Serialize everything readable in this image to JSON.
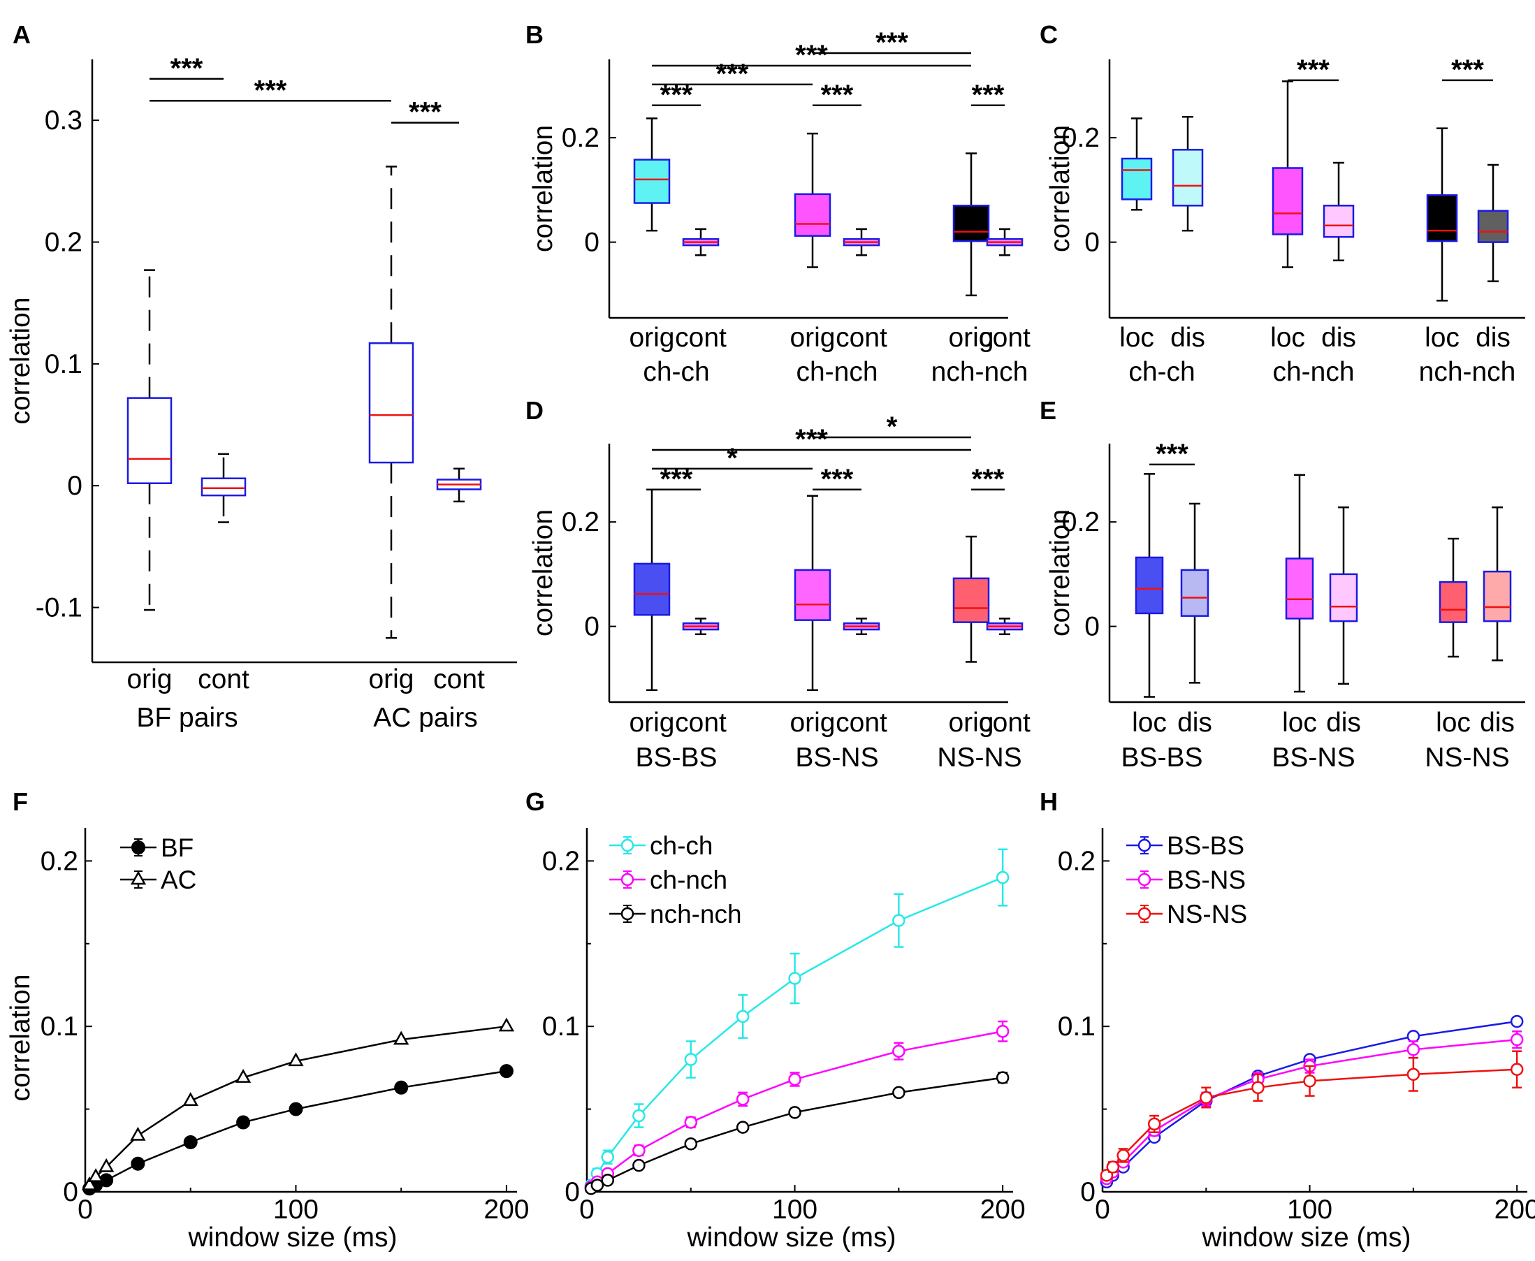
{
  "panel_labels": [
    "A",
    "B",
    "C",
    "D",
    "E",
    "F",
    "G",
    "H"
  ],
  "chart_data": [
    {
      "id": "A",
      "type": "box",
      "ylabel": "correlation",
      "ylim": [
        -0.145,
        0.35
      ],
      "yticks": [
        -0.1,
        0,
        0.1,
        0.2,
        0.3
      ],
      "ytick_labels": [
        "-0.1",
        "0",
        "0.1",
        "0.2",
        "0.3"
      ],
      "x_labels": [
        "orig",
        "cont",
        "orig",
        "cont"
      ],
      "group_labels": [
        "BF pairs",
        "AC pairs"
      ],
      "boxes": [
        {
          "label": "orig",
          "group": "BF pairs",
          "q1": 0.002,
          "median": 0.022,
          "q3": 0.072,
          "whisker_low": -0.102,
          "whisker_high": 0.177,
          "fill": "#ffffff"
        },
        {
          "label": "cont",
          "group": "BF pairs",
          "q1": -0.008,
          "median": -0.002,
          "q3": 0.006,
          "whisker_low": -0.03,
          "whisker_high": 0.026,
          "fill": "#ffffff"
        },
        {
          "label": "orig",
          "group": "AC pairs",
          "q1": 0.019,
          "median": 0.058,
          "q3": 0.117,
          "whisker_low": -0.125,
          "whisker_high": 0.262,
          "fill": "#ffffff"
        },
        {
          "label": "cont",
          "group": "AC pairs",
          "q1": -0.003,
          "median": 0.001,
          "q3": 0.005,
          "whisker_low": -0.013,
          "whisker_high": 0.014,
          "fill": "#ffffff"
        }
      ],
      "significance": [
        {
          "from": 0,
          "to": 1,
          "level": 0.334,
          "text": "***"
        },
        {
          "from": 0,
          "to": 2,
          "level": 0.316,
          "text": "***"
        },
        {
          "from": 2,
          "to": 3,
          "level": 0.298,
          "text": "***"
        }
      ]
    },
    {
      "id": "B",
      "type": "box",
      "ylabel": "correlation",
      "ylim": [
        -0.145,
        0.35
      ],
      "yticks": [
        0,
        0.2
      ],
      "ytick_labels": [
        "0",
        "0.2"
      ],
      "x_labels": [
        "orig",
        "cont",
        "orig",
        "cont",
        "orig",
        "cont"
      ],
      "group_labels": [
        "ch-ch",
        "ch-nch",
        "nch-nch"
      ],
      "boxes": [
        {
          "label": "orig",
          "group": "ch-ch",
          "q1": 0.075,
          "median": 0.12,
          "q3": 0.158,
          "whisker_low": 0.022,
          "whisker_high": 0.237,
          "fill": "#5ef2f2"
        },
        {
          "label": "cont",
          "group": "ch-ch",
          "q1": -0.006,
          "median": 0.0,
          "q3": 0.006,
          "whisker_low": -0.025,
          "whisker_high": 0.025,
          "fill": "#ff88ff"
        },
        {
          "label": "orig",
          "group": "ch-nch",
          "q1": 0.012,
          "median": 0.035,
          "q3": 0.092,
          "whisker_low": -0.048,
          "whisker_high": 0.208,
          "fill": "#ff55ff"
        },
        {
          "label": "cont",
          "group": "ch-nch",
          "q1": -0.006,
          "median": 0.0,
          "q3": 0.006,
          "whisker_low": -0.025,
          "whisker_high": 0.025,
          "fill": "#ff88ff"
        },
        {
          "label": "orig",
          "group": "nch-nch",
          "q1": 0.002,
          "median": 0.02,
          "q3": 0.07,
          "whisker_low": -0.102,
          "whisker_high": 0.17,
          "fill": "#000000"
        },
        {
          "label": "cont",
          "group": "nch-nch",
          "q1": -0.006,
          "median": 0.0,
          "q3": 0.006,
          "whisker_low": -0.025,
          "whisker_high": 0.025,
          "fill": "#ff88ff"
        }
      ],
      "significance": [
        {
          "from": 2,
          "to": 4,
          "level": 0.362,
          "text": "***"
        },
        {
          "from": 0,
          "to": 4,
          "level": 0.338,
          "text": "***"
        },
        {
          "from": 0,
          "to": 2,
          "level": 0.302,
          "text": "***"
        },
        {
          "from": 0,
          "to": 1,
          "level": 0.262,
          "text": "***"
        },
        {
          "from": 2,
          "to": 3,
          "level": 0.262,
          "text": "***"
        },
        {
          "from": 4,
          "to": 5,
          "level": 0.262,
          "text": "***"
        }
      ]
    },
    {
      "id": "C",
      "type": "box",
      "ylabel": "correlation",
      "ylim": [
        -0.145,
        0.35
      ],
      "yticks": [
        0,
        0.2
      ],
      "ytick_labels": [
        "0",
        "0.2"
      ],
      "x_labels": [
        "loc",
        "dis",
        "loc",
        "dis",
        "loc",
        "dis"
      ],
      "group_labels": [
        "ch-ch",
        "ch-nch",
        "nch-nch"
      ],
      "boxes": [
        {
          "label": "loc",
          "group": "ch-ch",
          "q1": 0.082,
          "median": 0.138,
          "q3": 0.16,
          "whisker_low": 0.062,
          "whisker_high": 0.237,
          "fill": "#5ef2f2"
        },
        {
          "label": "dis",
          "group": "ch-ch",
          "q1": 0.07,
          "median": 0.108,
          "q3": 0.177,
          "whisker_low": 0.022,
          "whisker_high": 0.24,
          "fill": "#bff9f9"
        },
        {
          "label": "loc",
          "group": "ch-nch",
          "q1": 0.015,
          "median": 0.055,
          "q3": 0.142,
          "whisker_low": -0.048,
          "whisker_high": 0.308,
          "fill": "#ff55ff"
        },
        {
          "label": "dis",
          "group": "ch-nch",
          "q1": 0.01,
          "median": 0.032,
          "q3": 0.07,
          "whisker_low": -0.035,
          "whisker_high": 0.152,
          "fill": "#ffc8ff"
        },
        {
          "label": "loc",
          "group": "nch-nch",
          "q1": 0.002,
          "median": 0.022,
          "q3": 0.09,
          "whisker_low": -0.112,
          "whisker_high": 0.218,
          "fill": "#000000"
        },
        {
          "label": "dis",
          "group": "nch-nch",
          "q1": 0.0,
          "median": 0.02,
          "q3": 0.06,
          "whisker_low": -0.075,
          "whisker_high": 0.148,
          "fill": "#606060"
        }
      ],
      "significance": [
        {
          "from": 2,
          "to": 3,
          "level": 0.31,
          "text": "***"
        },
        {
          "from": 4,
          "to": 5,
          "level": 0.31,
          "text": "***"
        }
      ]
    },
    {
      "id": "D",
      "type": "box",
      "ylabel": "correlation",
      "ylim": [
        -0.145,
        0.35
      ],
      "yticks": [
        0,
        0.2
      ],
      "ytick_labels": [
        "0",
        "0.2"
      ],
      "x_labels": [
        "orig",
        "cont",
        "orig",
        "cont",
        "orig",
        "cont"
      ],
      "group_labels": [
        "BS-BS",
        "BS-NS",
        "NS-NS"
      ],
      "boxes": [
        {
          "label": "orig",
          "group": "BS-BS",
          "q1": 0.022,
          "median": 0.062,
          "q3": 0.12,
          "whisker_low": -0.122,
          "whisker_high": 0.262,
          "fill": "#4a4ff2"
        },
        {
          "label": "cont",
          "group": "BS-BS",
          "q1": -0.006,
          "median": 0.0,
          "q3": 0.006,
          "whisker_low": -0.015,
          "whisker_high": 0.015,
          "fill": "#ff88ff"
        },
        {
          "label": "orig",
          "group": "BS-NS",
          "q1": 0.012,
          "median": 0.042,
          "q3": 0.108,
          "whisker_low": -0.122,
          "whisker_high": 0.25,
          "fill": "#ff66ff"
        },
        {
          "label": "cont",
          "group": "BS-NS",
          "q1": -0.006,
          "median": 0.0,
          "q3": 0.006,
          "whisker_low": -0.015,
          "whisker_high": 0.015,
          "fill": "#ff88ff"
        },
        {
          "label": "orig",
          "group": "NS-NS",
          "q1": 0.008,
          "median": 0.035,
          "q3": 0.092,
          "whisker_low": -0.068,
          "whisker_high": 0.172,
          "fill": "#ff6070"
        },
        {
          "label": "cont",
          "group": "NS-NS",
          "q1": -0.006,
          "median": 0.0,
          "q3": 0.006,
          "whisker_low": -0.015,
          "whisker_high": 0.015,
          "fill": "#ff88ff"
        }
      ],
      "significance": [
        {
          "from": 2,
          "to": 4,
          "level": 0.362,
          "text": "*"
        },
        {
          "from": 0,
          "to": 4,
          "level": 0.338,
          "text": "***"
        },
        {
          "from": 0,
          "to": 2,
          "level": 0.302,
          "text": "*"
        },
        {
          "from": 0,
          "to": 1,
          "level": 0.262,
          "text": "***"
        },
        {
          "from": 2,
          "to": 3,
          "level": 0.262,
          "text": "***"
        },
        {
          "from": 4,
          "to": 5,
          "level": 0.262,
          "text": "***"
        }
      ]
    },
    {
      "id": "E",
      "type": "box",
      "ylabel": "correlation",
      "ylim": [
        -0.145,
        0.35
      ],
      "yticks": [
        0,
        0.2
      ],
      "ytick_labels": [
        "0",
        "0.2"
      ],
      "x_labels": [
        "loc",
        "dis",
        "loc",
        "dis",
        "loc",
        "dis"
      ],
      "group_labels": [
        "BS-BS",
        "BS-NS",
        "NS-NS"
      ],
      "boxes": [
        {
          "label": "loc",
          "group": "BS-BS",
          "q1": 0.025,
          "median": 0.072,
          "q3": 0.132,
          "whisker_low": -0.135,
          "whisker_high": 0.292,
          "fill": "#4a4ff2"
        },
        {
          "label": "dis",
          "group": "BS-BS",
          "q1": 0.02,
          "median": 0.055,
          "q3": 0.108,
          "whisker_low": -0.108,
          "whisker_high": 0.235,
          "fill": "#b8b8f2"
        },
        {
          "label": "loc",
          "group": "BS-NS",
          "q1": 0.015,
          "median": 0.052,
          "q3": 0.13,
          "whisker_low": -0.125,
          "whisker_high": 0.29,
          "fill": "#ff66ff"
        },
        {
          "label": "dis",
          "group": "BS-NS",
          "q1": 0.01,
          "median": 0.038,
          "q3": 0.1,
          "whisker_low": -0.11,
          "whisker_high": 0.228,
          "fill": "#ffc8ff"
        },
        {
          "label": "loc",
          "group": "NS-NS",
          "q1": 0.008,
          "median": 0.032,
          "q3": 0.085,
          "whisker_low": -0.058,
          "whisker_high": 0.168,
          "fill": "#ff6070"
        },
        {
          "label": "dis",
          "group": "NS-NS",
          "q1": 0.01,
          "median": 0.037,
          "q3": 0.105,
          "whisker_low": -0.065,
          "whisker_high": 0.228,
          "fill": "#ffaaaa"
        }
      ],
      "significance": [
        {
          "from": 0,
          "to": 1,
          "level": 0.31,
          "text": "***"
        }
      ]
    },
    {
      "id": "F",
      "type": "line",
      "xlabel": "window size (ms)",
      "ylabel": "correlation",
      "xlim": [
        0,
        205
      ],
      "ylim": [
        0,
        0.22
      ],
      "xticks": [
        0,
        100,
        200
      ],
      "xtick_labels": [
        "0",
        "100",
        "200"
      ],
      "yticks": [
        0,
        0.1,
        0.2
      ],
      "ytick_labels": [
        "0",
        "0.1",
        "0.2"
      ],
      "x": [
        2,
        5,
        10,
        25,
        50,
        75,
        100,
        150,
        200
      ],
      "series": [
        {
          "name": "BF",
          "marker": "circle-filled",
          "color": "#000000",
          "values": [
            0.002,
            0.004,
            0.007,
            0.017,
            0.03,
            0.042,
            0.05,
            0.063,
            0.073
          ],
          "errors": [
            0.001,
            0.001,
            0.001,
            0.001,
            0.001,
            0.001,
            0.001,
            0.001,
            0.001
          ]
        },
        {
          "name": "AC",
          "marker": "triangle-open",
          "color": "#000000",
          "values": [
            0.004,
            0.009,
            0.015,
            0.034,
            0.055,
            0.069,
            0.079,
            0.092,
            0.1
          ],
          "errors": [
            0.001,
            0.001,
            0.001,
            0.001,
            0.001,
            0.001,
            0.001,
            0.001,
            0.001
          ]
        }
      ]
    },
    {
      "id": "G",
      "type": "line",
      "xlabel": "window size (ms)",
      "ylabel": "",
      "xlim": [
        0,
        205
      ],
      "ylim": [
        0,
        0.22
      ],
      "xticks": [
        0,
        100,
        200
      ],
      "xtick_labels": [
        "0",
        "100",
        "200"
      ],
      "yticks": [
        0,
        0.1,
        0.2
      ],
      "ytick_labels": [
        "0",
        "0.1",
        "0.2"
      ],
      "x": [
        2,
        5,
        10,
        25,
        50,
        75,
        100,
        150,
        200
      ],
      "series": [
        {
          "name": "ch-ch",
          "marker": "circle-open",
          "color": "#27e8e8",
          "values": [
            0.004,
            0.011,
            0.021,
            0.046,
            0.08,
            0.106,
            0.129,
            0.164,
            0.19
          ],
          "errors": [
            0.002,
            0.003,
            0.004,
            0.007,
            0.011,
            0.013,
            0.015,
            0.016,
            0.017
          ]
        },
        {
          "name": "ch-nch",
          "marker": "circle-open",
          "color": "#ff00ff",
          "values": [
            0.003,
            0.006,
            0.011,
            0.025,
            0.042,
            0.056,
            0.068,
            0.085,
            0.097
          ],
          "errors": [
            0.001,
            0.001,
            0.002,
            0.003,
            0.003,
            0.004,
            0.004,
            0.005,
            0.006
          ]
        },
        {
          "name": "nch-nch",
          "marker": "circle-open",
          "color": "#000000",
          "values": [
            0.002,
            0.004,
            0.007,
            0.016,
            0.029,
            0.039,
            0.048,
            0.06,
            0.069
          ],
          "errors": [
            0.001,
            0.001,
            0.001,
            0.001,
            0.002,
            0.002,
            0.002,
            0.002,
            0.003
          ]
        }
      ]
    },
    {
      "id": "H",
      "type": "line",
      "xlabel": "window size (ms)",
      "ylabel": "",
      "xlim": [
        0,
        205
      ],
      "ylim": [
        0,
        0.22
      ],
      "xticks": [
        0,
        100,
        200
      ],
      "xtick_labels": [
        "0",
        "100",
        "200"
      ],
      "yticks": [
        0,
        0.1,
        0.2
      ],
      "ytick_labels": [
        "0",
        "0.1",
        "0.2"
      ],
      "x": [
        2,
        5,
        10,
        25,
        50,
        75,
        100,
        150,
        200
      ],
      "series": [
        {
          "name": "BS-BS",
          "marker": "circle-open",
          "color": "#1a1ae6",
          "values": [
            0.006,
            0.01,
            0.015,
            0.033,
            0.055,
            0.07,
            0.08,
            0.094,
            0.103
          ],
          "errors": [
            0.001,
            0.001,
            0.001,
            0.002,
            0.002,
            0.002,
            0.002,
            0.002,
            0.002
          ]
        },
        {
          "name": "BS-NS",
          "marker": "circle-open",
          "color": "#ff00ff",
          "values": [
            0.008,
            0.012,
            0.018,
            0.037,
            0.056,
            0.068,
            0.076,
            0.086,
            0.092
          ],
          "errors": [
            0.001,
            0.002,
            0.002,
            0.003,
            0.004,
            0.004,
            0.004,
            0.005,
            0.005
          ]
        },
        {
          "name": "NS-NS",
          "marker": "circle-open",
          "color": "#ee1111",
          "values": [
            0.01,
            0.015,
            0.022,
            0.041,
            0.057,
            0.063,
            0.067,
            0.071,
            0.074
          ],
          "errors": [
            0.002,
            0.003,
            0.004,
            0.005,
            0.006,
            0.008,
            0.009,
            0.01,
            0.011
          ]
        }
      ]
    }
  ]
}
